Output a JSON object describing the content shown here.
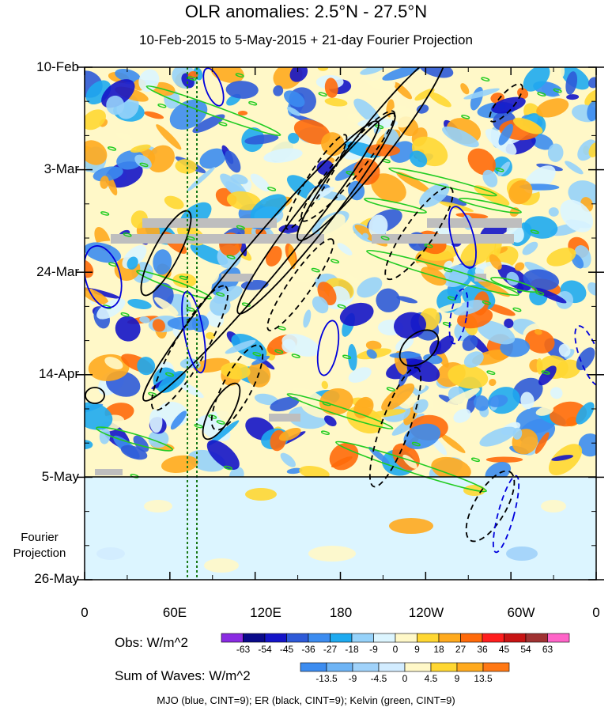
{
  "chart_data": {
    "type": "heatmap",
    "title": "OLR anomalies: 2.5°N - 27.5°N",
    "subtitle": "10-Feb-2015 to 5-May-2015 + 21-day Fourier Projection",
    "y_tick_labels": [
      "10-Feb",
      "3-Mar",
      "24-Mar",
      "14-Apr",
      "5-May",
      "26-May"
    ],
    "fourier_label": [
      "Fourier",
      "Projection"
    ],
    "x_tick_labels": [
      "0",
      "60E",
      "120E",
      "180",
      "120W",
      "60W",
      "0"
    ],
    "obs_colorbar": {
      "title": "Obs: W/m^2",
      "levels": [
        -63,
        -54,
        -45,
        -36,
        -27,
        -18,
        -9,
        0,
        9,
        18,
        27,
        36,
        45,
        54,
        63
      ],
      "colors": [
        "#8a2be2",
        "#0a0a8a",
        "#1414c8",
        "#2e5ad8",
        "#3c8cf0",
        "#1eaaf0",
        "#96d2fa",
        "#dcf5ff",
        "#fff8c8",
        "#ffd732",
        "#ffaa1e",
        "#ff6a0a",
        "#ff1e1e",
        "#c81414",
        "#a03232",
        "#ff64c8"
      ]
    },
    "waves_colorbar": {
      "title": "Sum of Waves: W/m^2",
      "levels": [
        -13.5,
        -9,
        -4.5,
        0,
        4.5,
        9,
        13.5
      ],
      "colors": [
        "#3c8cf0",
        "#6eb4f5",
        "#a0d2fa",
        "#d2ecff",
        "#fff8c8",
        "#ffd732",
        "#ffaa1e",
        "#ff7814"
      ]
    },
    "footer": "MJO (blue, CINT=9); ER (black, CINT=9); Kelvin (green, CINT=9)",
    "overlays": [
      "MJO",
      "ER",
      "Kelvin"
    ],
    "colors": {
      "mjo": "#0000dd",
      "er": "#000000",
      "kelvin": "#22cc22",
      "missing": "#bebebe"
    }
  }
}
